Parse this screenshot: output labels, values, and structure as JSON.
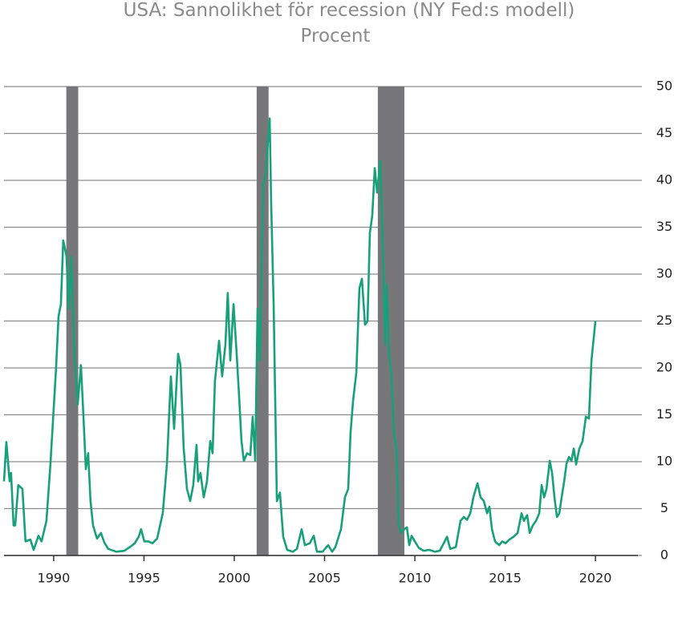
{
  "chart_data": {
    "type": "line",
    "title": "USA: Sannolikhet för recession (NY Fed:s modell)",
    "subtitle": "Procent",
    "x": [
      1987.25,
      1987.38,
      1987.56,
      1987.64,
      1987.78,
      1987.87,
      1988.04,
      1988.27,
      1988.44,
      1988.71,
      1988.89,
      1989.16,
      1989.33,
      1989.6,
      1989.82,
      1990.13,
      1990.27,
      1990.4,
      1990.53,
      1990.71,
      1990.84,
      1990.98,
      1991.16,
      1991.33,
      1991.51,
      1991.64,
      1991.78,
      1991.91,
      1992.04,
      1992.18,
      1992.4,
      1992.62,
      1992.8,
      1993.02,
      1993.47,
      1993.91,
      1994.22,
      1994.49,
      1994.71,
      1994.84,
      1995.02,
      1995.24,
      1995.47,
      1995.73,
      1996.04,
      1996.27,
      1996.49,
      1996.67,
      1996.89,
      1997.02,
      1997.2,
      1997.38,
      1997.56,
      1997.73,
      1997.91,
      1998.0,
      1998.13,
      1998.31,
      1998.49,
      1998.67,
      1998.8,
      1998.93,
      1999.16,
      1999.33,
      1999.51,
      1999.64,
      1999.78,
      1999.96,
      2000.13,
      2000.27,
      2000.4,
      2000.53,
      2000.71,
      2000.89,
      2001.02,
      2001.16,
      2001.29,
      2001.42,
      2001.6,
      2001.73,
      2001.82,
      2001.96,
      2002.04,
      2002.18,
      2002.36,
      2002.53,
      2002.71,
      2002.93,
      2003.24,
      2003.47,
      2003.73,
      2003.91,
      2004.18,
      2004.4,
      2004.58,
      2004.89,
      2005.2,
      2005.42,
      2005.6,
      2005.91,
      2006.13,
      2006.31,
      2006.44,
      2006.58,
      2006.76,
      2006.93,
      2007.07,
      2007.24,
      2007.38,
      2007.51,
      2007.64,
      2007.78,
      2007.91,
      2008.09,
      2008.22,
      2008.36,
      2008.44,
      2008.58,
      2008.71,
      2008.84,
      2008.98,
      2009.11,
      2009.24,
      2009.42,
      2009.56,
      2009.69,
      2009.82,
      2010.0,
      2010.22,
      2010.49,
      2010.8,
      2011.11,
      2011.38,
      2011.6,
      2011.78,
      2011.96,
      2012.27,
      2012.53,
      2012.71,
      2012.89,
      2013.07,
      2013.24,
      2013.47,
      2013.64,
      2013.82,
      2014.0,
      2014.13,
      2014.27,
      2014.44,
      2014.67,
      2014.84,
      2015.02,
      2015.24,
      2015.47,
      2015.69,
      2015.91,
      2016.04,
      2016.22,
      2016.36,
      2016.53,
      2016.71,
      2016.89,
      2017.02,
      2017.16,
      2017.29,
      2017.47,
      2017.6,
      2017.73,
      2017.87,
      2018.0,
      2018.13,
      2018.27,
      2018.4,
      2018.53,
      2018.67,
      2018.8,
      2018.93,
      2019.11,
      2019.29,
      2019.47,
      2019.64,
      2019.78,
      2019.91,
      2020.0
    ],
    "values": [
      7.9,
      12.1,
      7.9,
      8.8,
      3.2,
      3.2,
      7.5,
      7.1,
      1.5,
      1.7,
      0.6,
      2.1,
      1.5,
      3.7,
      9.7,
      19.9,
      25.5,
      26.8,
      33.6,
      31.9,
      26.3,
      31.9,
      20.8,
      16.1,
      20.3,
      15.2,
      9.2,
      10.9,
      5.8,
      3.2,
      1.8,
      2.4,
      1.4,
      0.7,
      0.4,
      0.5,
      0.9,
      1.3,
      2.0,
      2.8,
      1.5,
      1.5,
      1.3,
      1.8,
      4.5,
      9.7,
      19.1,
      13.5,
      21.5,
      20.3,
      11.4,
      7.1,
      5.8,
      7.5,
      11.8,
      7.9,
      8.8,
      6.2,
      7.9,
      12.2,
      10.9,
      18.6,
      22.9,
      19.1,
      22.5,
      28.0,
      20.8,
      26.8,
      21.6,
      16.9,
      12.2,
      10.1,
      10.9,
      10.7,
      14.8,
      10.1,
      26.3,
      20.8,
      39.6,
      40.4,
      43.0,
      46.6,
      37.9,
      26.8,
      5.8,
      6.7,
      2.0,
      0.6,
      0.4,
      0.7,
      2.8,
      1.1,
      1.3,
      2.1,
      0.4,
      0.4,
      1.1,
      0.4,
      0.9,
      2.8,
      6.2,
      7.1,
      13.1,
      16.5,
      19.5,
      28.5,
      29.5,
      24.6,
      25.0,
      34.4,
      36.2,
      41.3,
      38.7,
      42.1,
      33.6,
      22.5,
      28.9,
      21.2,
      19.1,
      13.1,
      11.4,
      3.2,
      2.4,
      2.8,
      3.0,
      1.1,
      2.1,
      1.5,
      0.8,
      0.5,
      0.6,
      0.4,
      0.5,
      1.3,
      2.0,
      0.7,
      0.9,
      3.7,
      4.1,
      3.8,
      4.5,
      6.2,
      7.7,
      6.2,
      5.8,
      4.5,
      5.2,
      2.8,
      1.5,
      1.1,
      1.5,
      1.3,
      1.7,
      2.0,
      2.4,
      4.5,
      3.7,
      4.3,
      2.4,
      3.2,
      3.7,
      4.5,
      7.5,
      6.2,
      7.1,
      10.1,
      8.8,
      6.2,
      4.1,
      4.5,
      6.2,
      7.9,
      9.8,
      10.5,
      10.1,
      11.4,
      9.7,
      11.4,
      12.2,
      14.8,
      14.6,
      20.8,
      23.3,
      25.0
    ],
    "color": "#18a07a",
    "recessions": [
      [
        1990.7,
        1991.36
      ],
      [
        2001.24,
        2001.9
      ],
      [
        2007.95,
        2009.42
      ]
    ],
    "recession_color": "#77777a",
    "xlim": [
      1987.25,
      2022.35
    ],
    "xticks": [
      1990,
      1995,
      2000,
      2005,
      2010,
      2015,
      2020
    ],
    "ylim": [
      0,
      50
    ],
    "yticks": [
      0,
      5,
      10,
      15,
      20,
      25,
      30,
      35,
      40,
      45,
      50
    ],
    "grid": true
  }
}
